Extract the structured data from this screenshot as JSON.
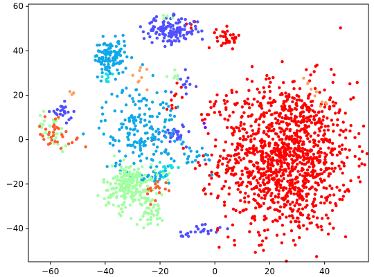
{
  "chart_data": {
    "type": "scatter",
    "title": "",
    "xlabel": "",
    "ylabel": "",
    "xlim": [
      -68,
      56
    ],
    "ylim": [
      -55,
      61
    ],
    "xticks": [
      -60,
      -40,
      -20,
      0,
      20,
      40
    ],
    "yticks": [
      -40,
      -20,
      0,
      20,
      40,
      60
    ],
    "grid": false,
    "legend": "none",
    "colors": {
      "red": "#ff0000",
      "orange_red": "#ff5a2a",
      "orange": "#ffa060",
      "light_green": "#a0ffa0",
      "cyan": "#18e0e0",
      "sky_blue": "#10a8e8",
      "indigo": "#5050ff",
      "violet": "#8000ff"
    },
    "clusters": [
      {
        "color": "red",
        "cx": 26,
        "cy": -8,
        "sx": 12,
        "sy": 17,
        "n": 1250
      },
      {
        "color": "red",
        "cx": 5,
        "cy": 46,
        "sx": 2.2,
        "sy": 2.2,
        "n": 35
      },
      {
        "color": "red",
        "cx": -8,
        "cy": 52,
        "sx": 1.5,
        "sy": 1.5,
        "n": 4
      },
      {
        "color": "red",
        "cx": 3,
        "cy": 16,
        "sx": 3,
        "sy": 2,
        "n": 12
      },
      {
        "color": "red",
        "cx": -14,
        "cy": 21,
        "sx": 2,
        "sy": 3,
        "n": 10
      },
      {
        "color": "indigo",
        "cx": -16,
        "cy": 49,
        "sx": 5,
        "sy": 3,
        "n": 140
      },
      {
        "color": "indigo",
        "cx": -15,
        "cy": 3,
        "sx": 2.2,
        "sy": 2.2,
        "n": 28
      },
      {
        "color": "indigo",
        "cx": -56,
        "cy": 12,
        "sx": 2,
        "sy": 2,
        "n": 22
      },
      {
        "color": "indigo",
        "cx": -10,
        "cy": 26,
        "sx": 2,
        "sy": 2.5,
        "n": 12
      },
      {
        "color": "indigo",
        "cx": -4,
        "cy": -40,
        "sx": 3,
        "sy": 1.5,
        "n": 18
      },
      {
        "color": "indigo",
        "cx": -11,
        "cy": -43,
        "sx": 1,
        "sy": 1,
        "n": 6
      },
      {
        "color": "sky_blue",
        "cx": -38,
        "cy": 37,
        "sx": 3,
        "sy": 4,
        "n": 120
      },
      {
        "color": "sky_blue",
        "cx": -27,
        "cy": 5,
        "sx": 7,
        "sy": 10,
        "n": 190
      },
      {
        "color": "sky_blue",
        "cx": -23,
        "cy": -17,
        "sx": 3,
        "sy": 1.5,
        "n": 22
      },
      {
        "color": "sky_blue",
        "cx": -5,
        "cy": -8,
        "sx": 3,
        "sy": 3,
        "n": 18
      },
      {
        "color": "cyan",
        "cx": -17,
        "cy": -13,
        "sx": 1.5,
        "sy": 1.5,
        "n": 15
      },
      {
        "color": "cyan",
        "cx": -40,
        "cy": 28,
        "sx": 2,
        "sy": 1.5,
        "n": 8
      },
      {
        "color": "light_green",
        "cx": -31,
        "cy": -21,
        "sx": 5,
        "sy": 5,
        "n": 210
      },
      {
        "color": "light_green",
        "cx": -23,
        "cy": -33,
        "sx": 2,
        "sy": 3,
        "n": 35
      },
      {
        "color": "light_green",
        "cx": -59,
        "cy": 5,
        "sx": 3,
        "sy": 4,
        "n": 30
      },
      {
        "color": "light_green",
        "cx": -14,
        "cy": 29,
        "sx": 1.5,
        "sy": 1.5,
        "n": 6
      },
      {
        "color": "light_green",
        "cx": -18,
        "cy": 55,
        "sx": 1.5,
        "sy": 1,
        "n": 4
      },
      {
        "color": "orange_red",
        "cx": -59,
        "cy": 4,
        "sx": 3,
        "sy": 4,
        "n": 28
      },
      {
        "color": "orange_red",
        "cx": -21,
        "cy": -23,
        "sx": 2,
        "sy": 3,
        "n": 15
      },
      {
        "color": "orange_red",
        "cx": -51,
        "cy": -2,
        "sx": 1.5,
        "sy": 1.5,
        "n": 5
      },
      {
        "color": "orange",
        "cx": -52,
        "cy": 21,
        "sx": 1,
        "sy": 1,
        "n": 4
      },
      {
        "color": "orange",
        "cx": -28,
        "cy": 28,
        "sx": 3,
        "sy": 3,
        "n": 8
      },
      {
        "color": "orange",
        "cx": 33,
        "cy": 25,
        "sx": 4,
        "sy": 4,
        "n": 6
      },
      {
        "color": "orange",
        "cx": 40,
        "cy": 16,
        "sx": 1.5,
        "sy": 1,
        "n": 4
      },
      {
        "color": "violet",
        "cx": -3,
        "cy": 6,
        "sx": 1,
        "sy": 1,
        "n": 2
      }
    ]
  }
}
